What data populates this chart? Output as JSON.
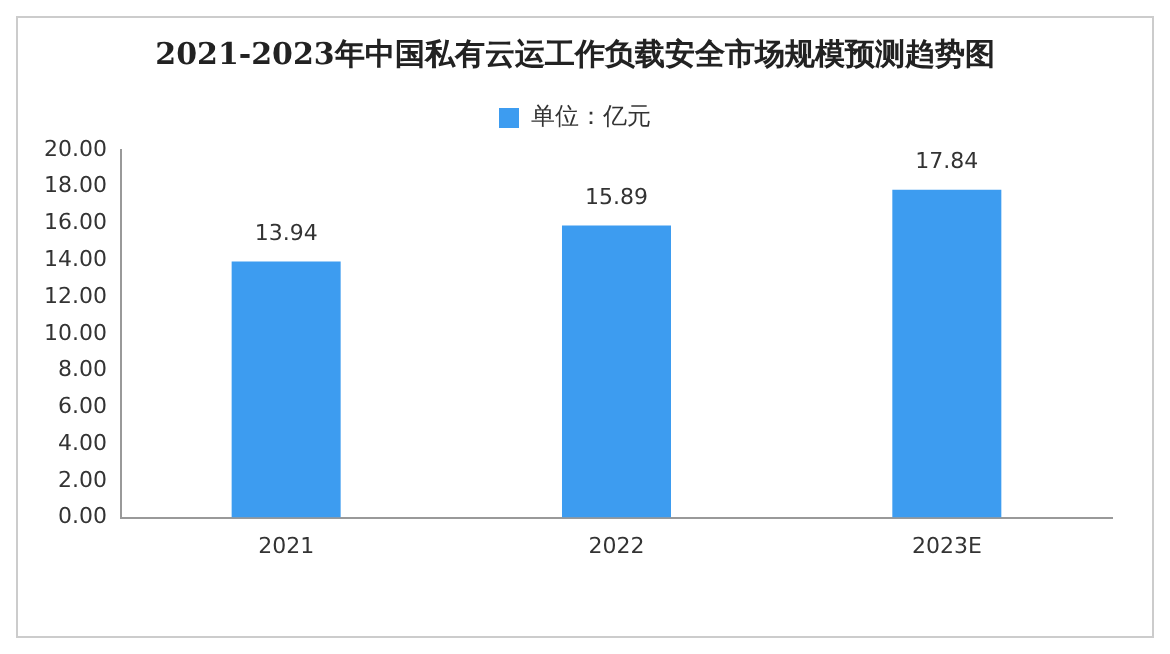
{
  "chart_data": {
    "type": "bar",
    "title": "2021-2023年中国私有云运工作负载安全市场规模预测趋势图",
    "categories": [
      "2021",
      "2022",
      "2023E"
    ],
    "series": [
      {
        "name": "单位：亿元",
        "color": "#3d9cf0",
        "values": [
          13.94,
          15.89,
          17.84
        ]
      }
    ],
    "ylim": [
      0,
      20
    ],
    "yticks": [
      {
        "value": 0,
        "label": "0.00"
      },
      {
        "value": 2,
        "label": "2.00"
      },
      {
        "value": 4,
        "label": "4.00"
      },
      {
        "value": 6,
        "label": "6.00"
      },
      {
        "value": 8,
        "label": "8.00"
      },
      {
        "value": 10,
        "label": "10.00"
      },
      {
        "value": 12,
        "label": "12.00"
      },
      {
        "value": 14,
        "label": "14.00"
      },
      {
        "value": 16,
        "label": "16.00"
      },
      {
        "value": 18,
        "label": "18.00"
      },
      {
        "value": 20,
        "label": "20.00"
      }
    ],
    "grid": false,
    "legend": "top",
    "data_labels": true
  }
}
